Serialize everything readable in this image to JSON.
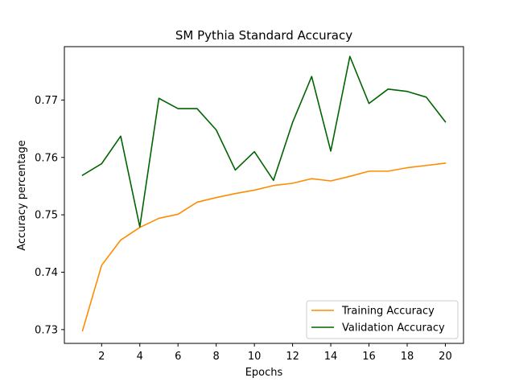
{
  "chart_data": {
    "type": "line",
    "title": "SM Pythia Standard Accuracy",
    "xlabel": "Epochs",
    "ylabel": "Accuracy percentage",
    "x": [
      1,
      2,
      3,
      4,
      5,
      6,
      7,
      8,
      9,
      10,
      11,
      12,
      13,
      14,
      15,
      16,
      17,
      18,
      19,
      20
    ],
    "xlim": [
      0.05,
      20.95
    ],
    "ylim": [
      0.7276,
      0.7793
    ],
    "xticks": [
      2,
      4,
      6,
      8,
      10,
      12,
      14,
      16,
      18,
      20
    ],
    "xtick_labels": [
      "2",
      "4",
      "6",
      "8",
      "10",
      "12",
      "14",
      "16",
      "18",
      "20"
    ],
    "yticks": [
      0.73,
      0.74,
      0.75,
      0.76,
      0.77
    ],
    "ytick_labels": [
      "0.73",
      "0.74",
      "0.75",
      "0.76",
      "0.77"
    ],
    "grid": false,
    "legend_position": "lower right",
    "series": [
      {
        "name": "Training Accuracy",
        "color": "#ff8c00",
        "values": [
          0.7298,
          0.7412,
          0.7456,
          0.7478,
          0.7494,
          0.7501,
          0.7522,
          0.753,
          0.7537,
          0.7543,
          0.7551,
          0.7555,
          0.7563,
          0.7559,
          0.7567,
          0.7576,
          0.7576,
          0.7582,
          0.7586,
          0.759
        ]
      },
      {
        "name": "Validation Accuracy",
        "color": "#006400",
        "values": [
          0.7569,
          0.7589,
          0.7637,
          0.7479,
          0.7703,
          0.7685,
          0.7685,
          0.7648,
          0.7578,
          0.761,
          0.756,
          0.7661,
          0.7741,
          0.7611,
          0.7776,
          0.7694,
          0.7719,
          0.7715,
          0.7705,
          0.7662
        ]
      }
    ]
  }
}
